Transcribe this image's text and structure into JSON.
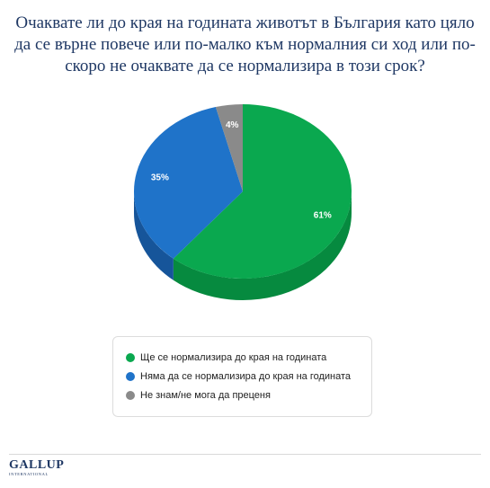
{
  "title": "Очаквате ли до края на годината животът в България като цяло да се върне повече или по-малко към нормалния си ход или по-скоро не очаквате да се нормализира в този срок?",
  "chart_data": {
    "type": "pie",
    "three_d": true,
    "categories": [
      "Ще се нормализира до края на годината",
      "Няма да се нормализира до края на годината",
      "Не знам/не мога да преценя"
    ],
    "values": [
      61,
      35,
      4
    ],
    "value_labels": [
      "61%",
      "35%",
      "4%"
    ],
    "colors": [
      "#0aa84f",
      "#1f73c9",
      "#8a8a8a"
    ],
    "side_colors": [
      "#068a3f",
      "#16559a",
      "#6b6b6b"
    ],
    "legend_position": "bottom"
  },
  "logo": {
    "main": "GALLUP",
    "sub": "INTERNATIONAL"
  }
}
